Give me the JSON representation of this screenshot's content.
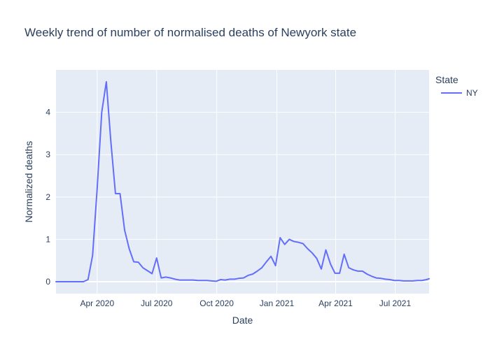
{
  "chart_data": {
    "type": "line",
    "title": "Weekly trend of number of normalised deaths of Newyork state",
    "xlabel": "Date",
    "ylabel": "Normalized deaths",
    "x_ticks": [
      "Apr 2020",
      "Jul 2020",
      "Oct 2020",
      "Jan 2021",
      "Apr 2021",
      "Jul 2021"
    ],
    "y_ticks": [
      "0",
      "1",
      "2",
      "3",
      "4"
    ],
    "ylim": [
      -0.28,
      5.0
    ],
    "xlim": [
      "2020-01-29",
      "2021-08-22"
    ],
    "grid": true,
    "legend_title": "State",
    "legend_position": "top-right",
    "series": [
      {
        "name": "NY",
        "color": "#636efa",
        "x": [
          "2020-01-29",
          "2020-02-05",
          "2020-02-12",
          "2020-02-19",
          "2020-02-26",
          "2020-03-04",
          "2020-03-11",
          "2020-03-18",
          "2020-03-25",
          "2020-04-01",
          "2020-04-08",
          "2020-04-15",
          "2020-04-22",
          "2020-04-29",
          "2020-05-06",
          "2020-05-13",
          "2020-05-20",
          "2020-05-27",
          "2020-06-03",
          "2020-06-10",
          "2020-06-17",
          "2020-06-24",
          "2020-07-01",
          "2020-07-08",
          "2020-07-15",
          "2020-07-22",
          "2020-07-29",
          "2020-08-05",
          "2020-08-12",
          "2020-08-19",
          "2020-08-26",
          "2020-09-02",
          "2020-09-09",
          "2020-09-16",
          "2020-09-23",
          "2020-09-30",
          "2020-10-07",
          "2020-10-14",
          "2020-10-21",
          "2020-10-28",
          "2020-11-04",
          "2020-11-11",
          "2020-11-18",
          "2020-11-25",
          "2020-12-02",
          "2020-12-09",
          "2020-12-16",
          "2020-12-23",
          "2020-12-30",
          "2021-01-06",
          "2021-01-13",
          "2021-01-20",
          "2021-01-27",
          "2021-02-03",
          "2021-02-10",
          "2021-02-17",
          "2021-02-24",
          "2021-03-03",
          "2021-03-10",
          "2021-03-17",
          "2021-03-24",
          "2021-03-31",
          "2021-04-07",
          "2021-04-14",
          "2021-04-21",
          "2021-04-28",
          "2021-05-05",
          "2021-05-12",
          "2021-05-19",
          "2021-05-26",
          "2021-06-02",
          "2021-06-09",
          "2021-06-16",
          "2021-06-23",
          "2021-06-30",
          "2021-07-07",
          "2021-07-14",
          "2021-07-21",
          "2021-07-28",
          "2021-08-04",
          "2021-08-11",
          "2021-08-18",
          "2021-08-22"
        ],
        "y": [
          0,
          0,
          0,
          0,
          0,
          0,
          0,
          0.05,
          0.62,
          2.2,
          4.0,
          4.72,
          3.3,
          2.08,
          2.08,
          1.22,
          0.78,
          0.47,
          0.46,
          0.33,
          0.26,
          0.19,
          0.56,
          0.09,
          0.11,
          0.09,
          0.06,
          0.04,
          0.04,
          0.04,
          0.04,
          0.03,
          0.03,
          0.03,
          0.02,
          0.01,
          0.05,
          0.04,
          0.06,
          0.06,
          0.08,
          0.09,
          0.15,
          0.18,
          0.25,
          0.33,
          0.47,
          0.6,
          0.38,
          1.04,
          0.88,
          1.0,
          0.95,
          0.93,
          0.9,
          0.78,
          0.68,
          0.55,
          0.3,
          0.75,
          0.42,
          0.2,
          0.2,
          0.65,
          0.33,
          0.28,
          0.25,
          0.25,
          0.18,
          0.13,
          0.09,
          0.08,
          0.06,
          0.05,
          0.03,
          0.03,
          0.02,
          0.02,
          0.02,
          0.03,
          0.03,
          0.05,
          0.07
        ]
      }
    ]
  }
}
